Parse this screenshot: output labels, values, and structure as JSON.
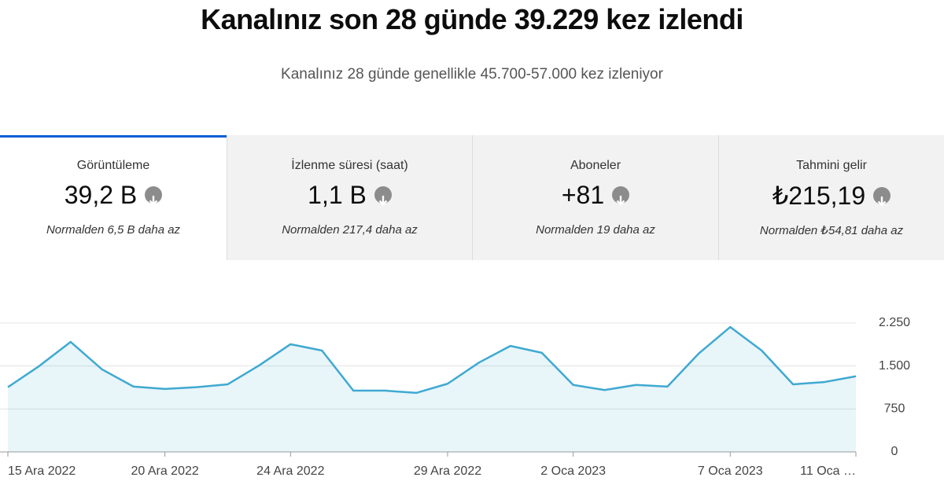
{
  "header": {
    "title": "Kanalınız son 28 günde 39.229 kez izlendi",
    "subtitle": "Kanalınız 28 günde genellikle 45.700-57.000 kez izleniyor"
  },
  "metrics": [
    {
      "label": "Görüntüleme",
      "value": "39,2 B",
      "note": "Normalden 6,5 B daha az"
    },
    {
      "label": "İzlenme süresi (saat)",
      "value": "1,1 B",
      "note": "Normalden 217,4 daha az"
    },
    {
      "label": "Aboneler",
      "value": "+81",
      "note": "Normalden 19 daha az"
    },
    {
      "label": "Tahmini gelir",
      "value": "₺215,19",
      "note": "Normalden ₺54,81 daha az"
    }
  ],
  "chart_data": {
    "type": "area",
    "categories": [
      "15 Ara 2022",
      null,
      null,
      null,
      null,
      "20 Ara 2022",
      null,
      null,
      null,
      "24 Ara 2022",
      null,
      null,
      null,
      null,
      "29 Ara 2022",
      null,
      null,
      null,
      "2 Oca 2023",
      null,
      null,
      null,
      null,
      "7 Oca 2023",
      null,
      null,
      null,
      "11 Oca …"
    ],
    "values": [
      1130,
      1500,
      1920,
      1440,
      1140,
      1100,
      1130,
      1180,
      1510,
      1880,
      1770,
      1070,
      1070,
      1030,
      1190,
      1560,
      1850,
      1730,
      1170,
      1080,
      1170,
      1140,
      1720,
      2180,
      1770,
      1180,
      1220,
      1320
    ],
    "color": "#3fa9d1",
    "ylim": [
      0,
      2250
    ],
    "yticks": [
      0,
      750,
      {
        "value": 1500,
        "label": "1.500"
      },
      {
        "value": 2250,
        "label": "2.250"
      }
    ],
    "grid": true
  }
}
